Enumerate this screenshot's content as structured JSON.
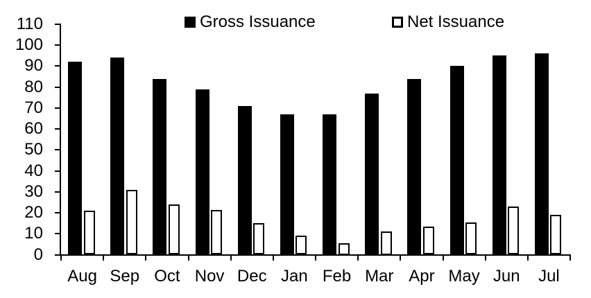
{
  "chart_data": {
    "type": "bar",
    "title": "",
    "xlabel": "",
    "ylabel": "",
    "categories": [
      "Aug",
      "Sep",
      "Oct",
      "Nov",
      "Dec",
      "Jan",
      "Feb",
      "Mar",
      "Apr",
      "May",
      "Jun",
      "Jul"
    ],
    "series": [
      {
        "name": "Gross Issuance",
        "values": [
          92,
          94,
          84,
          79,
          71,
          67,
          67,
          77,
          84,
          90,
          95,
          96
        ],
        "fill": "#000000",
        "stroke": "#000000"
      },
      {
        "name": "Net Issuance",
        "values": [
          21,
          31,
          24,
          21.5,
          15,
          9,
          5.5,
          11,
          13.5,
          15.5,
          23,
          19
        ],
        "fill": "#ffffff",
        "stroke": "#000000"
      }
    ],
    "ylim": [
      0,
      110
    ],
    "yticks": [
      0,
      10,
      20,
      30,
      40,
      50,
      60,
      70,
      80,
      90,
      100,
      110
    ],
    "grid": false,
    "legend_position": "top"
  },
  "colors": {
    "background": "#ffffff",
    "axis": "#000000",
    "text": "#000000",
    "gross_bar_fill": "#000000",
    "net_bar_fill": "#ffffff",
    "net_bar_outline": "#000000"
  }
}
